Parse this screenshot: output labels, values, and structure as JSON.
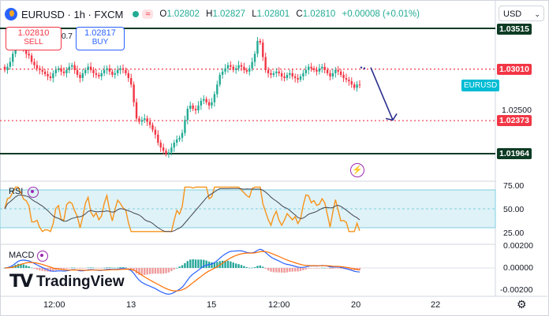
{
  "header": {
    "symbol": "EURUSD",
    "interval": "1h",
    "exchange": "FXCM",
    "market_status_icon": "market-open-icon",
    "pill_symbol": "≈",
    "open_label": "O",
    "open": "1.02802",
    "high_label": "H",
    "high": "1.02827",
    "low_label": "L",
    "low": "1.02801",
    "close_label": "C",
    "close": "1.02810",
    "change": "+0.00008 (+0.01%)"
  },
  "trade": {
    "sell_price": "1.02810",
    "sell_label": "SELL",
    "spread": "0.7",
    "buy_price": "1.02817",
    "buy_label": "BUY"
  },
  "currency_selector": "USD",
  "price_axis": {
    "labels": [
      "1.03515",
      "1.03010",
      "1.02500",
      "1.02373",
      "1.01964"
    ],
    "tag_colors": {
      "black_line": "#0d3b24",
      "red_line": "#f23645",
      "symbol": "#00bcd4"
    }
  },
  "symbol_tag": "EURUSD",
  "rsi": {
    "label": "RSI",
    "ticks": [
      "75.00",
      "50.00",
      "25.00"
    ]
  },
  "macd": {
    "label": "MACD",
    "ticks": [
      "0.00200",
      "0.00000",
      "-0.00200"
    ]
  },
  "time_axis": [
    "12:00",
    "13",
    "15",
    "12:00",
    "20",
    "22"
  ],
  "brand": "TradingView",
  "colors": {
    "up": "#22ab94",
    "down": "#f23645",
    "rsi": "#f7931a",
    "macd": "#2962ff",
    "signal": "#ff6d00"
  },
  "chart_data": {
    "type": "candlestick",
    "symbol": "EURUSD",
    "interval": "1h",
    "levels": [
      {
        "price": 1.03515,
        "style": "solid",
        "color": "#0d3b24"
      },
      {
        "price": 1.0301,
        "style": "dotted",
        "color": "#f23645"
      },
      {
        "price": 1.02373,
        "style": "dotted",
        "color": "#f23645"
      },
      {
        "price": 1.01964,
        "style": "solid",
        "color": "#0d3b24"
      }
    ],
    "last_price": 1.0281,
    "price_path": [
      1.03,
      1.0304,
      1.031,
      1.032,
      1.0332,
      1.0336,
      1.033,
      1.0326,
      1.032,
      1.0318,
      1.031,
      1.0306,
      1.0302,
      1.03,
      1.0298,
      1.0295,
      1.0292,
      1.029,
      1.0296,
      1.03,
      1.0302,
      1.0298,
      1.0296,
      1.03,
      1.0304,
      1.0306,
      1.03,
      1.0294,
      1.029,
      1.0296,
      1.03,
      1.0304,
      1.03,
      1.0296,
      1.0294,
      1.0292,
      1.0296,
      1.03,
      1.0302,
      1.0298,
      1.0294,
      1.0296,
      1.03,
      1.0302,
      1.03,
      1.0296,
      1.029,
      1.0282,
      1.026,
      1.024,
      1.0236,
      1.0238,
      1.024,
      1.0236,
      1.0232,
      1.0226,
      1.022,
      1.021,
      1.0204,
      1.02,
      1.0196,
      1.0198,
      1.0204,
      1.021,
      1.0214,
      1.0216,
      1.0222,
      1.0238,
      1.0252,
      1.0256,
      1.0252,
      1.025,
      1.0256,
      1.0262,
      1.0264,
      1.026,
      1.0256,
      1.026,
      1.027,
      1.0282,
      1.0294,
      1.0298,
      1.0302,
      1.0306,
      1.0304,
      1.03,
      1.0302,
      1.0306,
      1.0304,
      1.03,
      1.0298,
      1.0302,
      1.031,
      1.032,
      1.0336,
      1.0334,
      1.0316,
      1.03,
      1.0296,
      1.0294,
      1.0296,
      1.0298,
      1.0296,
      1.0292,
      1.029,
      1.0294,
      1.0296,
      1.0292,
      1.029,
      1.0288,
      1.0292,
      1.0296,
      1.03,
      1.0304,
      1.0302,
      1.03,
      1.0298,
      1.0302,
      1.0304,
      1.03,
      1.0296,
      1.0292,
      1.0296,
      1.03,
      1.0298,
      1.0294,
      1.029,
      1.0288,
      1.0286,
      1.0282,
      1.0278,
      1.0282,
      1.0281
    ],
    "projection": [
      {
        "from": 1.0303,
        "to": 1.0238
      }
    ],
    "rsi_ylim": [
      25,
      75
    ],
    "macd_ylim": [
      -0.002,
      0.002
    ]
  }
}
